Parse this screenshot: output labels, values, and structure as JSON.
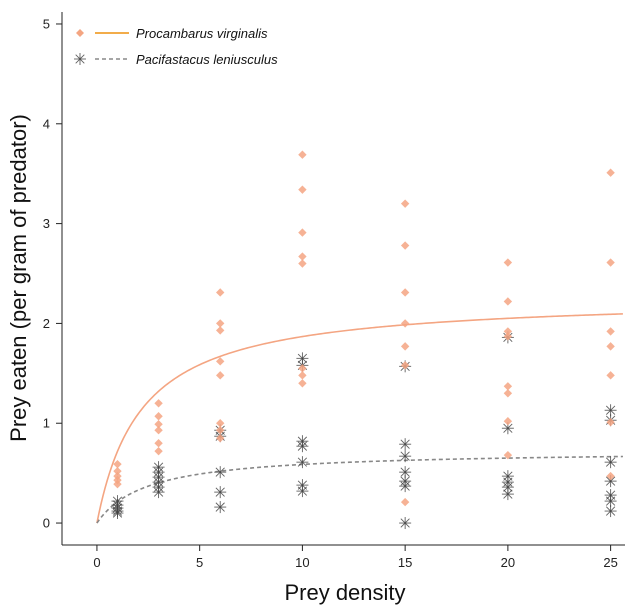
{
  "chart_data": {
    "type": "scatter",
    "xlabel": "Prey density",
    "ylabel": "Prey eaten (per gram of predator)",
    "xlim": [
      -1.7,
      25.7
    ],
    "ylim": [
      -0.22,
      5.12
    ],
    "xticks": [
      0,
      5,
      10,
      15,
      20,
      25
    ],
    "yticks": [
      0,
      1,
      2,
      3,
      4,
      5
    ],
    "legend_position": "top-left",
    "series": [
      {
        "name": "Procambarus virginalis",
        "color": "#f4a582",
        "marker": "diamond",
        "line_style": "solid",
        "points": [
          [
            1,
            0.59
          ],
          [
            1,
            0.52
          ],
          [
            1,
            0.47
          ],
          [
            1,
            0.43
          ],
          [
            1,
            0.39
          ],
          [
            3,
            1.2
          ],
          [
            3,
            1.07
          ],
          [
            3,
            0.99
          ],
          [
            3,
            0.93
          ],
          [
            3,
            0.8
          ],
          [
            3,
            0.72
          ],
          [
            6,
            2.31
          ],
          [
            6,
            2.0
          ],
          [
            6,
            1.93
          ],
          [
            6,
            1.62
          ],
          [
            6,
            1.48
          ],
          [
            6,
            1.0
          ],
          [
            6,
            0.93
          ],
          [
            6,
            0.85
          ],
          [
            10,
            3.69
          ],
          [
            10,
            3.34
          ],
          [
            10,
            2.91
          ],
          [
            10,
            2.67
          ],
          [
            10,
            2.6
          ],
          [
            10,
            1.55
          ],
          [
            10,
            1.48
          ],
          [
            10,
            1.4
          ],
          [
            15,
            3.2
          ],
          [
            15,
            2.78
          ],
          [
            15,
            2.31
          ],
          [
            15,
            2.0
          ],
          [
            15,
            1.77
          ],
          [
            15,
            1.58
          ],
          [
            15,
            0.21
          ],
          [
            20,
            2.61
          ],
          [
            20,
            2.22
          ],
          [
            20,
            1.92
          ],
          [
            20,
            1.87
          ],
          [
            20,
            1.37
          ],
          [
            20,
            1.3
          ],
          [
            20,
            1.02
          ],
          [
            20,
            0.68
          ],
          [
            25,
            3.51
          ],
          [
            25,
            2.61
          ],
          [
            25,
            1.92
          ],
          [
            25,
            1.77
          ],
          [
            25,
            1.48
          ],
          [
            25,
            1.01
          ],
          [
            25,
            0.47
          ]
        ],
        "curve": {
          "a": 1.05,
          "h": 0.44
        }
      },
      {
        "name": "Pacifastacus leniusculus",
        "color": "#444444",
        "marker": "asterisk",
        "line_style": "dashed",
        "line_color": "#888888",
        "points": [
          [
            1,
            0.22
          ],
          [
            1,
            0.18
          ],
          [
            1,
            0.15
          ],
          [
            1,
            0.12
          ],
          [
            1,
            0.1
          ],
          [
            3,
            0.56
          ],
          [
            3,
            0.51
          ],
          [
            3,
            0.46
          ],
          [
            3,
            0.41
          ],
          [
            3,
            0.36
          ],
          [
            3,
            0.31
          ],
          [
            6,
            0.93
          ],
          [
            6,
            0.87
          ],
          [
            6,
            0.51
          ],
          [
            6,
            0.31
          ],
          [
            6,
            0.16
          ],
          [
            10,
            1.65
          ],
          [
            10,
            1.58
          ],
          [
            10,
            0.82
          ],
          [
            10,
            0.77
          ],
          [
            10,
            0.61
          ],
          [
            10,
            0.38
          ],
          [
            10,
            0.32
          ],
          [
            15,
            1.57
          ],
          [
            15,
            0.79
          ],
          [
            15,
            0.67
          ],
          [
            15,
            0.51
          ],
          [
            15,
            0.42
          ],
          [
            15,
            0.37
          ],
          [
            15,
            0.0
          ],
          [
            20,
            1.86
          ],
          [
            20,
            0.95
          ],
          [
            20,
            0.47
          ],
          [
            20,
            0.41
          ],
          [
            20,
            0.36
          ],
          [
            20,
            0.29
          ],
          [
            25,
            1.13
          ],
          [
            25,
            1.03
          ],
          [
            25,
            0.61
          ],
          [
            25,
            0.42
          ],
          [
            25,
            0.28
          ],
          [
            25,
            0.22
          ],
          [
            25,
            0.12
          ]
        ],
        "curve": {
          "a": 0.3,
          "h": 1.37
        }
      }
    ]
  }
}
